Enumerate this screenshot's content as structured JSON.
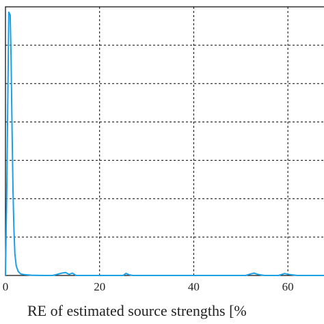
{
  "chart_data": {
    "type": "line",
    "title": "",
    "xlabel": "RE of estimated source strengths [%",
    "ylabel": "",
    "xlim": [
      0,
      70
    ],
    "ylim": [
      0,
      1.0
    ],
    "x_ticks": [
      0,
      20,
      40,
      60
    ],
    "x_tick_labels": [
      "0",
      "20",
      "40",
      "60"
    ],
    "grid": "dashed",
    "series": [
      {
        "color": "#1aa0e6",
        "x": [
          0,
          0.3,
          0.7,
          1.0,
          1.2,
          1.4,
          1.6,
          1.8,
          2.0,
          2.3,
          2.7,
          3.2,
          4.0,
          5.5,
          8,
          10,
          11,
          12,
          12.8,
          13.5,
          14.2,
          15,
          20,
          25,
          25.6,
          26.2,
          27,
          35,
          45,
          51,
          52,
          52.8,
          53.6,
          55,
          58,
          59.3,
          60.5,
          62,
          66,
          70
        ],
        "y": [
          0.0,
          0.35,
          0.98,
          0.97,
          0.8,
          0.55,
          0.32,
          0.17,
          0.08,
          0.035,
          0.015,
          0.006,
          0.003,
          0.001,
          0.0,
          0.0,
          0.004,
          0.009,
          0.011,
          0.004,
          0.009,
          0.0,
          0.0,
          0.0,
          0.008,
          0.003,
          0.0,
          0.0,
          0.0,
          0.0,
          0.005,
          0.009,
          0.004,
          0.0,
          0.0,
          0.007,
          0.003,
          0.0,
          0.0,
          0.0
        ]
      }
    ]
  }
}
